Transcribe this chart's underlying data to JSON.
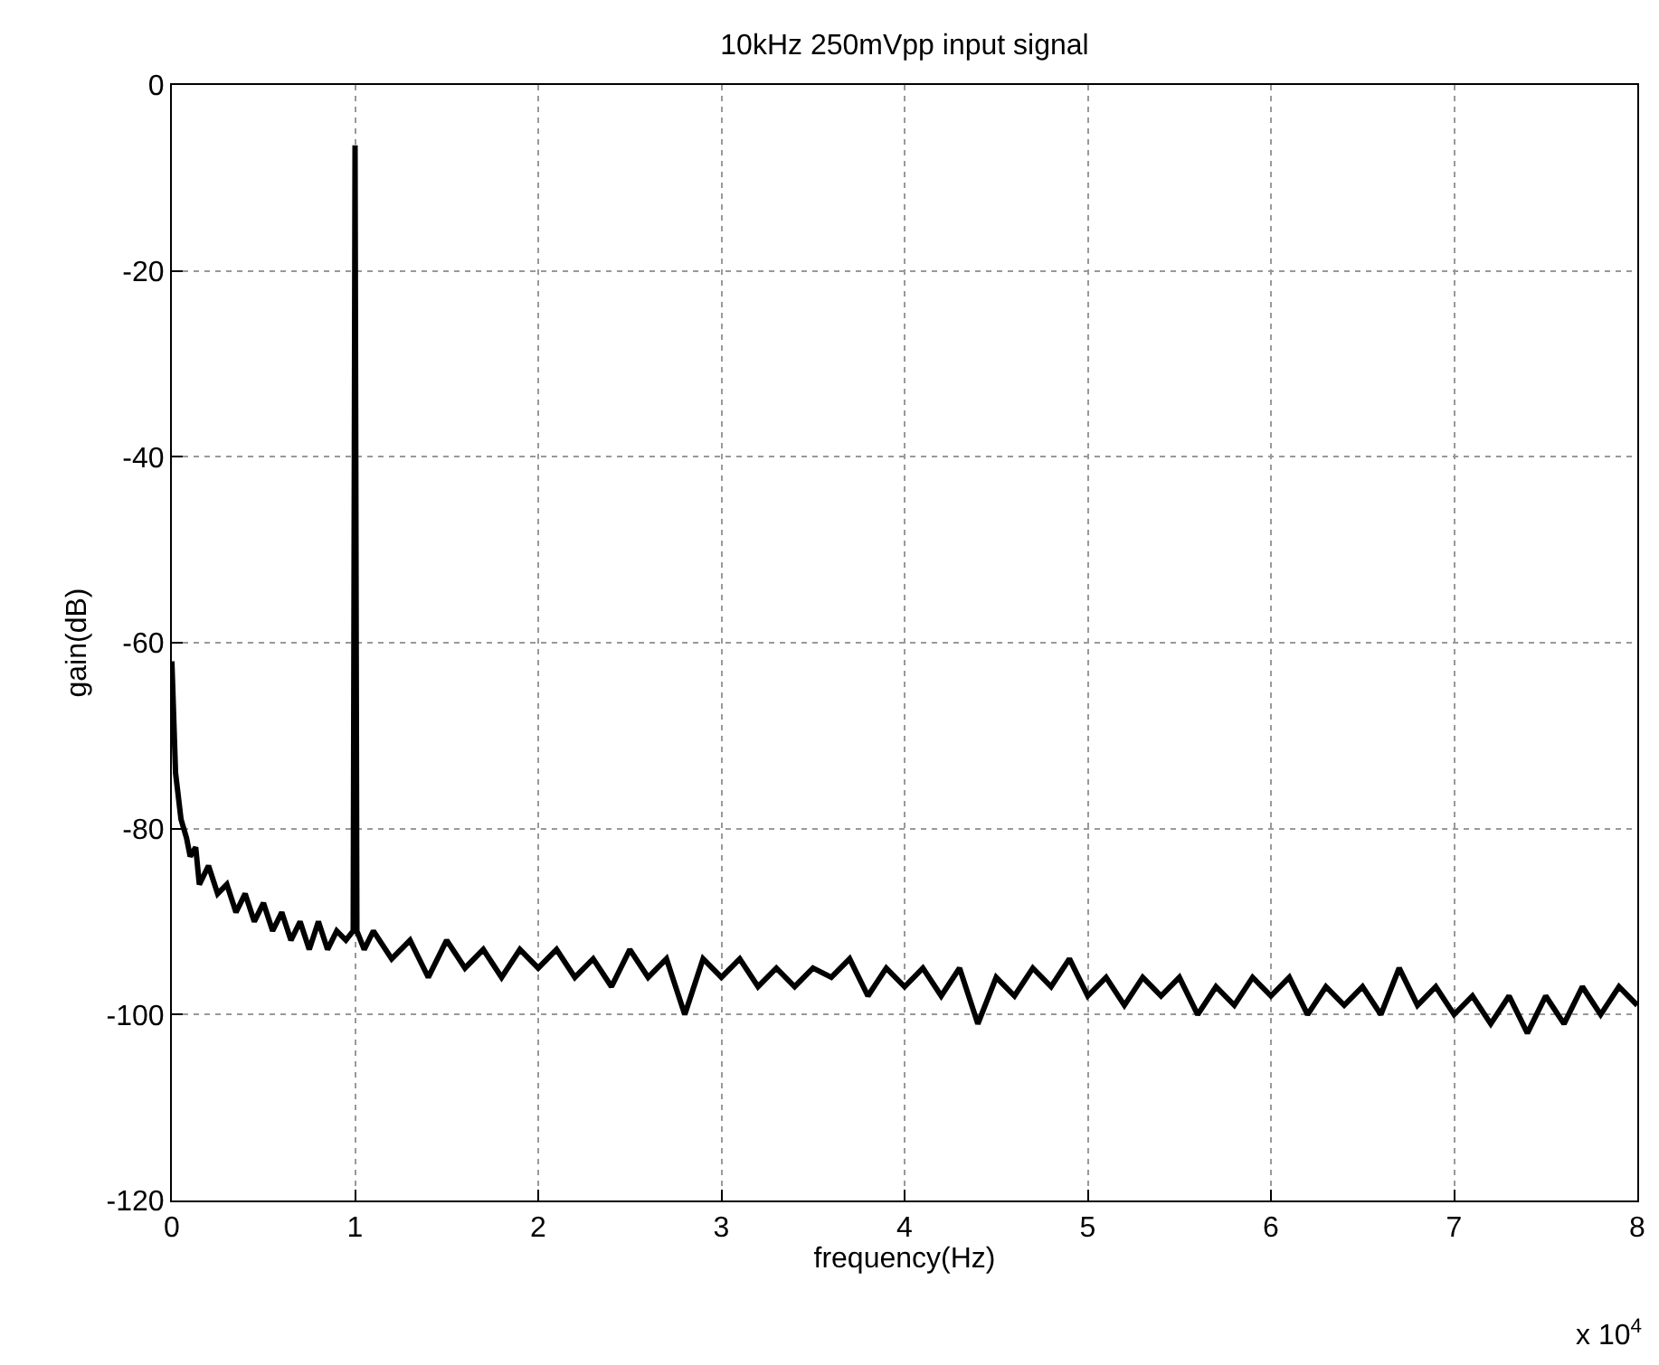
{
  "chart_data": {
    "type": "line",
    "title": "10kHz 250mVpp input signal",
    "xlabel": "frequency(Hz)",
    "ylabel": "gain(dB)",
    "annotations": [
      "x 10$^{4}$"
    ],
    "x": [
      0,
      0.02,
      0.05,
      0.08,
      0.1,
      0.13,
      0.15,
      0.2,
      0.25,
      0.3,
      0.35,
      0.4,
      0.45,
      0.5,
      0.55,
      0.6,
      0.65,
      0.7,
      0.75,
      0.8,
      0.85,
      0.9,
      0.95,
      0.99,
      1.0,
      1.01,
      1.05,
      1.1,
      1.2,
      1.3,
      1.4,
      1.5,
      1.6,
      1.7,
      1.8,
      1.9,
      2.0,
      2.1,
      2.2,
      2.3,
      2.4,
      2.5,
      2.6,
      2.7,
      2.8,
      2.9,
      3.0,
      3.1,
      3.2,
      3.3,
      3.4,
      3.5,
      3.6,
      3.7,
      3.8,
      3.9,
      4.0,
      4.1,
      4.2,
      4.3,
      4.4,
      4.5,
      4.6,
      4.7,
      4.8,
      4.9,
      5.0,
      5.1,
      5.2,
      5.3,
      5.4,
      5.5,
      5.6,
      5.7,
      5.8,
      5.9,
      6.0,
      6.1,
      6.2,
      6.3,
      6.4,
      6.5,
      6.6,
      6.7,
      6.8,
      6.9,
      7.0,
      7.1,
      7.2,
      7.3,
      7.4,
      7.5,
      7.6,
      7.7,
      7.8,
      7.9,
      8.0
    ],
    "series": [
      {
        "color": "#000000",
        "values": [
          -62,
          -74,
          -79,
          -81,
          -83,
          -82,
          -86,
          -84,
          -87,
          -86,
          -89,
          -87,
          -90,
          -88,
          -91,
          -89,
          -92,
          -90,
          -93,
          -90,
          -93,
          -91,
          -92,
          -91,
          -6.5,
          -91,
          -93,
          -91,
          -94,
          -92,
          -96,
          -92,
          -95,
          -93,
          -96,
          -93,
          -95,
          -93,
          -96,
          -94,
          -97,
          -93,
          -96,
          -94,
          -100,
          -94,
          -96,
          -94,
          -97,
          -95,
          -97,
          -95,
          -96,
          -94,
          -98,
          -95,
          -97,
          -95,
          -98,
          -95,
          -101,
          -96,
          -98,
          -95,
          -97,
          -94,
          -98,
          -96,
          -99,
          -96,
          -98,
          -96,
          -100,
          -97,
          -99,
          -96,
          -98,
          -96,
          -100,
          -97,
          -99,
          -97,
          -100,
          -95,
          -99,
          -97,
          -100,
          -98,
          -101,
          -98,
          -102,
          -98,
          -101,
          -97,
          -100,
          -97,
          -99
        ]
      }
    ],
    "xlim": [
      0,
      8
    ],
    "xticks": [
      0,
      1,
      2,
      3,
      4,
      5,
      6,
      7,
      8
    ],
    "ylim": [
      -120,
      0
    ],
    "yticks": [
      -120,
      -100,
      -80,
      -60,
      -40,
      -20,
      0
    ],
    "grid": true,
    "legend": false,
    "marker": "none",
    "line_style": "solid"
  }
}
